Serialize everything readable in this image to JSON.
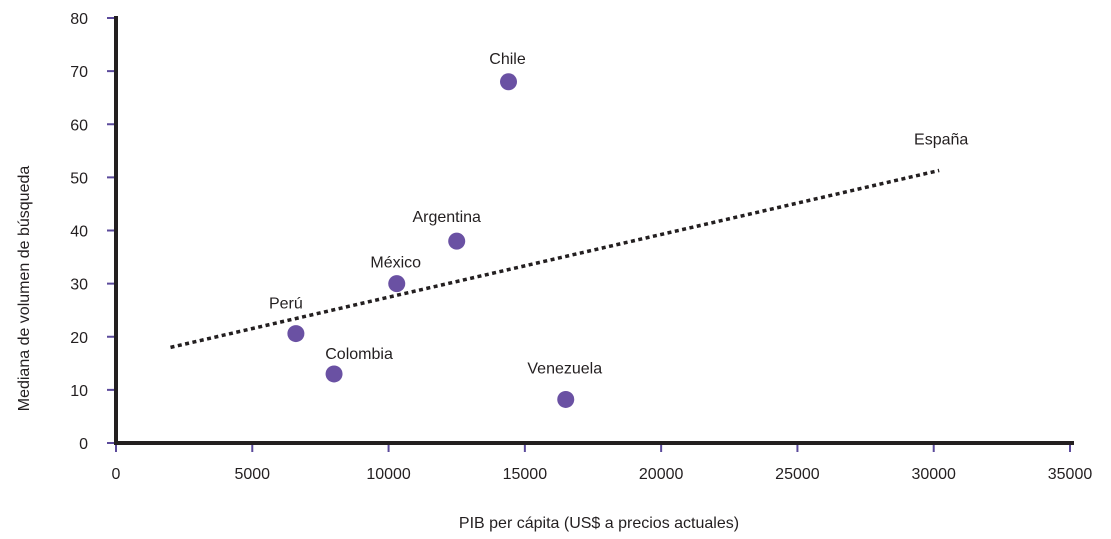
{
  "chart_data": {
    "type": "scatter",
    "title": "",
    "xlabel": "PIB per cápita (US$ a precios actuales)",
    "ylabel": "Mediana de volumen de búsqueda",
    "xlim": [
      0,
      35000
    ],
    "ylim": [
      0,
      80
    ],
    "xticks": [
      0,
      5000,
      10000,
      15000,
      20000,
      25000,
      30000,
      35000
    ],
    "yticks": [
      0,
      10,
      20,
      30,
      40,
      50,
      60,
      70,
      80
    ],
    "grid": false,
    "marker_color": "#6a51a3",
    "axis_color": "#231f20",
    "tick_color": "#5b4a9b",
    "points": [
      {
        "label": "Chile",
        "x": 14400,
        "y": 68
      },
      {
        "label": "Argentina",
        "x": 12500,
        "y": 38
      },
      {
        "label": "México",
        "x": 10300,
        "y": 30
      },
      {
        "label": "Perú",
        "x": 6600,
        "y": 20.6
      },
      {
        "label": "Colombia",
        "x": 8000,
        "y": 13
      },
      {
        "label": "Venezuela",
        "x": 16500,
        "y": 8.2
      }
    ],
    "trendline": {
      "style": "dotted",
      "start": {
        "x": 2000,
        "y": 18
      },
      "end": {
        "x": 30200,
        "y": 51.3
      },
      "label": "España"
    }
  }
}
